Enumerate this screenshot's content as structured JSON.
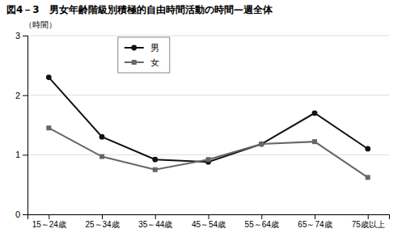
{
  "chart_data": {
    "type": "line",
    "title": "図4－3　男女年齢階級別積極的自由時間活動の時間—週全体",
    "ylabel": "（時間）",
    "categories": [
      "15～24歳",
      "25～34歳",
      "35～44歳",
      "45～54歳",
      "55～64歳",
      "65～74歳",
      "75歳以上"
    ],
    "series": [
      {
        "name": "男",
        "color": "#111111",
        "marker": "circle",
        "values": [
          2.3,
          1.3,
          0.92,
          0.88,
          1.18,
          1.7,
          1.1
        ]
      },
      {
        "name": "女",
        "color": "#666666",
        "marker": "square",
        "values": [
          1.45,
          0.97,
          0.75,
          0.92,
          1.18,
          1.22,
          0.62
        ]
      }
    ],
    "ylim": [
      0,
      3
    ],
    "yticks": [
      0,
      1,
      2,
      3
    ],
    "grid": true,
    "legend": "upper left"
  }
}
